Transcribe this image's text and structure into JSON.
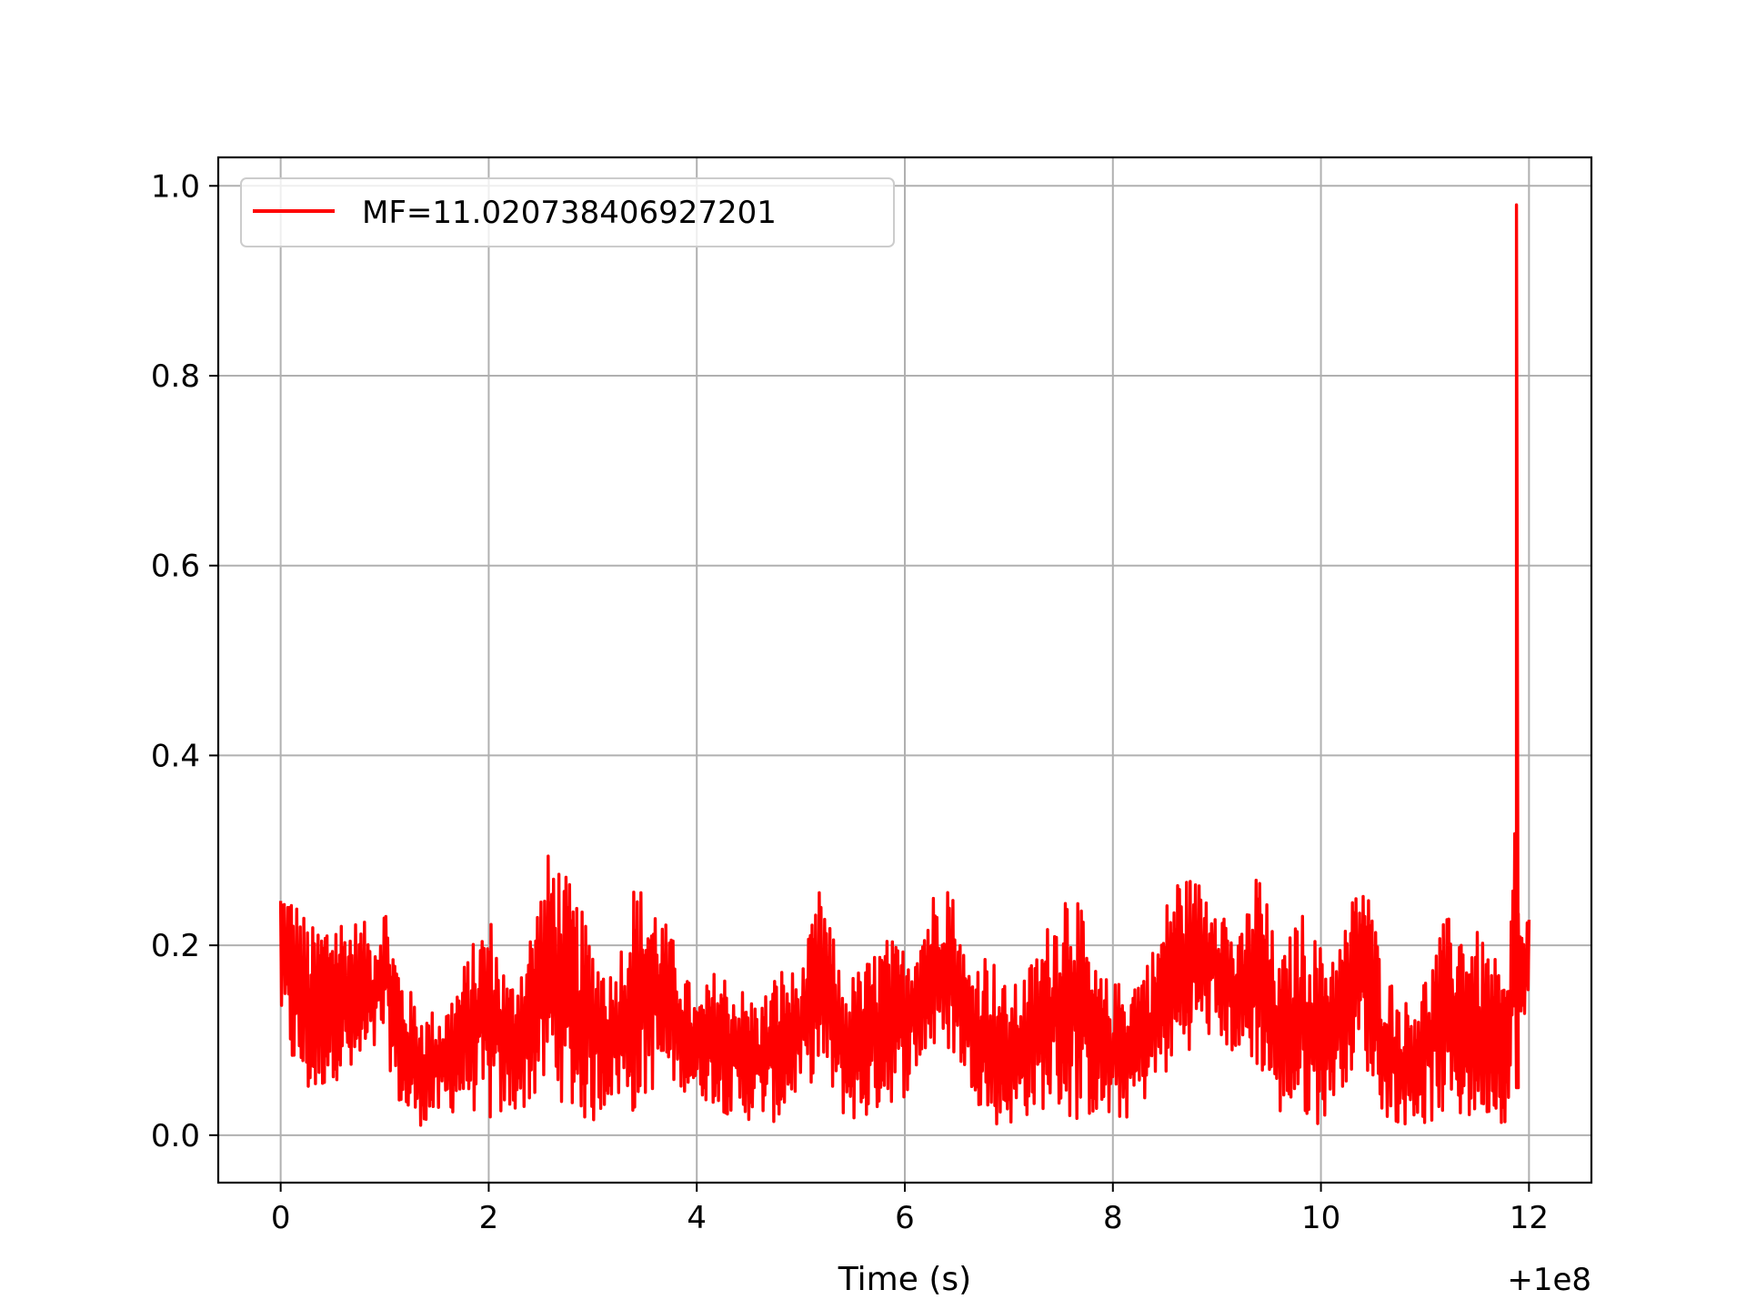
{
  "chart_data": {
    "type": "line",
    "title": "",
    "xlabel": "Time (s)",
    "ylabel": "",
    "x_offset_label": "+1e8",
    "xlim": [
      -0.6,
      12.6
    ],
    "ylim": [
      -0.05,
      1.03
    ],
    "xticks": [
      0,
      2,
      4,
      6,
      8,
      10,
      12
    ],
    "xtick_labels": [
      "0",
      "2",
      "4",
      "6",
      "8",
      "10",
      "12"
    ],
    "yticks": [
      0.0,
      0.2,
      0.4,
      0.6,
      0.8,
      1.0
    ],
    "ytick_labels": [
      "0.0",
      "0.2",
      "0.4",
      "0.6",
      "0.8",
      "1.0"
    ],
    "grid": true,
    "legend": "upper-left",
    "series": [
      {
        "name": "MF=11.020738406927201",
        "color": "#ff0000",
        "x": [
          0.0,
          0.1,
          0.3,
          0.5,
          0.7,
          0.9,
          1.0,
          1.1,
          1.2,
          1.4,
          1.6,
          1.8,
          2.0,
          2.2,
          2.4,
          2.6,
          2.8,
          3.0,
          3.2,
          3.4,
          3.6,
          3.8,
          4.0,
          4.2,
          4.4,
          4.6,
          4.8,
          5.0,
          5.2,
          5.4,
          5.6,
          5.8,
          6.0,
          6.2,
          6.4,
          6.6,
          6.8,
          7.0,
          7.2,
          7.4,
          7.6,
          7.8,
          8.0,
          8.2,
          8.4,
          8.6,
          8.8,
          9.0,
          9.2,
          9.4,
          9.6,
          9.8,
          10.0,
          10.2,
          10.4,
          10.6,
          10.8,
          11.0,
          11.2,
          11.4,
          11.6,
          11.8,
          11.86,
          11.88,
          11.9,
          12.0
        ],
        "y": [
          0.27,
          0.26,
          0.22,
          0.24,
          0.23,
          0.22,
          0.25,
          0.2,
          0.16,
          0.13,
          0.14,
          0.19,
          0.24,
          0.16,
          0.22,
          0.31,
          0.26,
          0.21,
          0.17,
          0.27,
          0.25,
          0.2,
          0.14,
          0.18,
          0.16,
          0.14,
          0.18,
          0.17,
          0.27,
          0.16,
          0.18,
          0.21,
          0.2,
          0.24,
          0.29,
          0.18,
          0.2,
          0.15,
          0.18,
          0.23,
          0.29,
          0.18,
          0.16,
          0.17,
          0.2,
          0.28,
          0.27,
          0.27,
          0.2,
          0.29,
          0.18,
          0.24,
          0.2,
          0.21,
          0.29,
          0.18,
          0.14,
          0.17,
          0.23,
          0.23,
          0.2,
          0.16,
          0.33,
          0.98,
          0.22,
          0.24
        ],
        "y_low": [
          0.12,
          0.07,
          0.03,
          0.06,
          0.05,
          0.08,
          0.1,
          0.04,
          0.01,
          0.01,
          0.02,
          0.03,
          0.01,
          0.02,
          0.03,
          0.05,
          0.02,
          0.01,
          0.04,
          0.02,
          0.05,
          0.05,
          0.04,
          0.03,
          0.01,
          0.02,
          0.01,
          0.05,
          0.06,
          0.02,
          0.01,
          0.03,
          0.04,
          0.08,
          0.09,
          0.06,
          0.01,
          0.01,
          0.02,
          0.03,
          0.01,
          0.02,
          0.01,
          0.02,
          0.05,
          0.07,
          0.1,
          0.1,
          0.08,
          0.07,
          0.02,
          0.02,
          0.01,
          0.05,
          0.08,
          0.02,
          0.01,
          0.01,
          0.02,
          0.01,
          0.02,
          0.01,
          0.05,
          0.05,
          0.09,
          0.11
        ]
      }
    ]
  }
}
